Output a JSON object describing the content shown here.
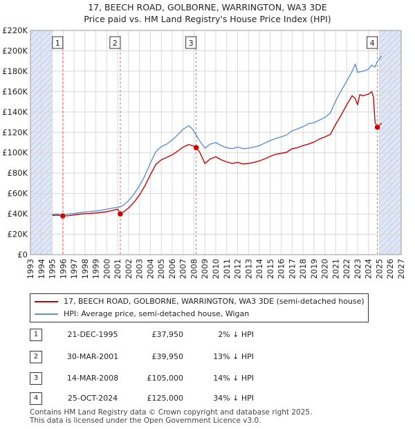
{
  "title": "17, BEECH ROAD, GOLBORNE, WARRINGTON, WA3 3DE",
  "subtitle": "Price paid vs. HM Land Registry's House Price Index (HPI)",
  "colors": {
    "property": "#cc0000",
    "hpi": "#5b8fd6",
    "shade": "#dfe6f5",
    "grid": "#d8d8d8",
    "marker_line": "#e06060"
  },
  "chart_data": {
    "type": "line",
    "title": "Price paid vs. HM Land Registry's House Price Index (HPI)",
    "xlabel": "",
    "ylabel": "",
    "xlim": [
      1993,
      2027
    ],
    "ylim": [
      0,
      220000
    ],
    "x_ticks": [
      1993,
      1994,
      1995,
      1996,
      1997,
      1998,
      1999,
      2000,
      2001,
      2002,
      2003,
      2004,
      2005,
      2006,
      2007,
      2008,
      2009,
      2010,
      2011,
      2012,
      2013,
      2014,
      2015,
      2016,
      2017,
      2018,
      2019,
      2020,
      2021,
      2022,
      2023,
      2024,
      2025,
      2026,
      2027
    ],
    "y_ticks": [
      0,
      20000,
      40000,
      60000,
      80000,
      100000,
      120000,
      140000,
      160000,
      180000,
      200000,
      220000
    ],
    "y_tick_labels": [
      "£0",
      "£20K",
      "£40K",
      "£60K",
      "£80K",
      "£100K",
      "£120K",
      "£140K",
      "£160K",
      "£180K",
      "£200K",
      "£220K"
    ],
    "shaded_ranges": [
      [
        1993,
        1995.0
      ],
      [
        2025.0,
        2027
      ]
    ],
    "series": [
      {
        "name": "17, BEECH ROAD, GOLBORNE, WARRINGTON, WA3 3DE (semi-detached house)",
        "color": "#cc0000",
        "points": [
          [
            1995.0,
            38500
          ],
          [
            1995.5,
            38800
          ],
          [
            1995.97,
            37950
          ],
          [
            1996.5,
            38200
          ],
          [
            1997.0,
            39000
          ],
          [
            1997.5,
            39700
          ],
          [
            1998.0,
            40200
          ],
          [
            1998.5,
            40500
          ],
          [
            1999.0,
            40900
          ],
          [
            1999.5,
            41400
          ],
          [
            2000.0,
            42200
          ],
          [
            2000.5,
            43300
          ],
          [
            2001.0,
            44600
          ],
          [
            2001.24,
            39950
          ],
          [
            2001.5,
            41500
          ],
          [
            2002.0,
            45800
          ],
          [
            2002.5,
            51500
          ],
          [
            2003.0,
            58500
          ],
          [
            2003.5,
            67500
          ],
          [
            2004.0,
            78500
          ],
          [
            2004.5,
            88500
          ],
          [
            2005.0,
            93000
          ],
          [
            2005.5,
            95500
          ],
          [
            2006.0,
            98000
          ],
          [
            2006.5,
            101500
          ],
          [
            2007.0,
            105500
          ],
          [
            2007.5,
            108000
          ],
          [
            2008.0,
            106500
          ],
          [
            2008.2,
            105000
          ],
          [
            2008.5,
            101000
          ],
          [
            2009.0,
            89500
          ],
          [
            2009.5,
            94000
          ],
          [
            2010.0,
            96000
          ],
          [
            2010.5,
            93000
          ],
          [
            2011.0,
            91000
          ],
          [
            2011.5,
            89500
          ],
          [
            2012.0,
            90500
          ],
          [
            2012.5,
            89000
          ],
          [
            2013.0,
            89500
          ],
          [
            2013.5,
            90500
          ],
          [
            2014.0,
            92000
          ],
          [
            2014.5,
            94000
          ],
          [
            2015.0,
            96500
          ],
          [
            2015.5,
            98500
          ],
          [
            2016.0,
            99500
          ],
          [
            2016.5,
            100500
          ],
          [
            2017.0,
            104000
          ],
          [
            2017.5,
            105000
          ],
          [
            2018.0,
            107000
          ],
          [
            2018.5,
            108500
          ],
          [
            2019.0,
            110500
          ],
          [
            2019.5,
            113500
          ],
          [
            2020.0,
            115500
          ],
          [
            2020.5,
            118000
          ],
          [
            2021.0,
            128000
          ],
          [
            2021.5,
            137000
          ],
          [
            2022.0,
            147000
          ],
          [
            2022.5,
            156000
          ],
          [
            2022.8,
            153000
          ],
          [
            2023.0,
            147000
          ],
          [
            2023.2,
            157000
          ],
          [
            2023.5,
            156000
          ],
          [
            2024.0,
            157500
          ],
          [
            2024.3,
            160000
          ],
          [
            2024.45,
            155000
          ],
          [
            2024.6,
            130000
          ],
          [
            2024.82,
            125000
          ],
          [
            2025.0,
            127000
          ],
          [
            2025.2,
            129000
          ]
        ]
      },
      {
        "name": "HPI: Average price, semi-detached house, Wigan",
        "color": "#5b8fd6",
        "points": [
          [
            1995.0,
            39500
          ],
          [
            1995.5,
            39700
          ],
          [
            1996.0,
            39300
          ],
          [
            1996.5,
            39800
          ],
          [
            1997.0,
            40500
          ],
          [
            1997.5,
            41200
          ],
          [
            1998.0,
            41800
          ],
          [
            1998.5,
            42300
          ],
          [
            1999.0,
            42800
          ],
          [
            1999.5,
            43600
          ],
          [
            2000.0,
            44600
          ],
          [
            2000.5,
            45600
          ],
          [
            2001.0,
            46400
          ],
          [
            2001.5,
            48200
          ],
          [
            2002.0,
            53000
          ],
          [
            2002.5,
            59500
          ],
          [
            2003.0,
            67500
          ],
          [
            2003.5,
            77500
          ],
          [
            2004.0,
            90000
          ],
          [
            2004.5,
            101000
          ],
          [
            2005.0,
            106000
          ],
          [
            2005.5,
            108500
          ],
          [
            2006.0,
            112500
          ],
          [
            2006.5,
            117500
          ],
          [
            2007.0,
            123000
          ],
          [
            2007.5,
            126500
          ],
          [
            2007.8,
            124000
          ],
          [
            2008.0,
            121000
          ],
          [
            2008.5,
            112000
          ],
          [
            2009.0,
            104500
          ],
          [
            2009.5,
            108500
          ],
          [
            2010.0,
            110000
          ],
          [
            2010.5,
            107000
          ],
          [
            2011.0,
            105000
          ],
          [
            2011.5,
            104000
          ],
          [
            2012.0,
            105500
          ],
          [
            2012.5,
            104000
          ],
          [
            2013.0,
            104500
          ],
          [
            2013.5,
            105500
          ],
          [
            2014.0,
            107000
          ],
          [
            2014.5,
            109500
          ],
          [
            2015.0,
            112000
          ],
          [
            2015.5,
            114000
          ],
          [
            2016.0,
            115500
          ],
          [
            2016.5,
            117500
          ],
          [
            2017.0,
            121500
          ],
          [
            2017.5,
            123500
          ],
          [
            2018.0,
            125500
          ],
          [
            2018.5,
            128500
          ],
          [
            2019.0,
            129500
          ],
          [
            2019.5,
            132000
          ],
          [
            2020.0,
            134500
          ],
          [
            2020.5,
            139000
          ],
          [
            2021.0,
            151000
          ],
          [
            2021.5,
            161000
          ],
          [
            2022.0,
            170000
          ],
          [
            2022.5,
            180000
          ],
          [
            2022.8,
            187000
          ],
          [
            2023.0,
            179000
          ],
          [
            2023.5,
            180000
          ],
          [
            2024.0,
            182000
          ],
          [
            2024.3,
            186000
          ],
          [
            2024.6,
            184000
          ],
          [
            2024.82,
            190000
          ],
          [
            2025.0,
            192000
          ],
          [
            2025.2,
            195000
          ]
        ]
      }
    ],
    "sales": [
      {
        "id": "1",
        "x": 1995.97,
        "price": 37950
      },
      {
        "id": "2",
        "x": 2001.24,
        "price": 39950
      },
      {
        "id": "3",
        "x": 2008.2,
        "price": 105000
      },
      {
        "id": "4",
        "x": 2024.82,
        "price": 125000
      }
    ]
  },
  "legend": [
    {
      "label": "17, BEECH ROAD, GOLBORNE, WARRINGTON, WA3 3DE (semi-detached house)",
      "color": "#cc0000"
    },
    {
      "label": "HPI: Average price, semi-detached house, Wigan",
      "color": "#5b8fd6"
    }
  ],
  "table": [
    {
      "num": "1",
      "date": "21-DEC-1995",
      "price": "£37,950",
      "hpi": "2% ↓ HPI"
    },
    {
      "num": "2",
      "date": "30-MAR-2001",
      "price": "£39,950",
      "hpi": "13% ↓ HPI"
    },
    {
      "num": "3",
      "date": "14-MAR-2008",
      "price": "£105,000",
      "hpi": "14% ↓ HPI"
    },
    {
      "num": "4",
      "date": "25-OCT-2024",
      "price": "£125,000",
      "hpi": "34% ↓ HPI"
    }
  ],
  "footer": {
    "line1": "Contains HM Land Registry data © Crown copyright and database right 2025.",
    "line2": "This data is licensed under the Open Government Licence v3.0."
  }
}
